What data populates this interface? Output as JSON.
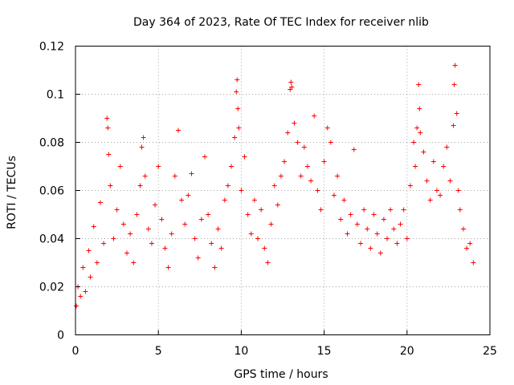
{
  "chart_data": {
    "type": "scatter",
    "title": "Day 364 of 2023, Rate Of TEC Index for receiver nlib",
    "xlabel": "GPS time / hours",
    "ylabel": "ROTI / TECUs",
    "xlim": [
      0,
      25
    ],
    "ylim": [
      0,
      0.12
    ],
    "xticks": [
      "0",
      "5",
      "10",
      "15",
      "20",
      "25"
    ],
    "yticks": [
      "0",
      "0.02",
      "0.04",
      "0.06",
      "0.08",
      "0.1",
      "0.12"
    ],
    "grid": true,
    "marker": "+",
    "color": "#ff0000",
    "series": [
      {
        "points": [
          [
            0.05,
            0.012
          ],
          [
            0.15,
            0.02
          ],
          [
            0.3,
            0.016
          ],
          [
            0.45,
            0.028
          ],
          [
            0.6,
            0.018
          ],
          [
            0.8,
            0.035
          ],
          [
            0.9,
            0.024
          ],
          [
            1.1,
            0.045
          ],
          [
            1.3,
            0.03
          ],
          [
            1.5,
            0.055
          ],
          [
            1.7,
            0.038
          ],
          [
            1.9,
            0.09
          ],
          [
            1.95,
            0.086
          ],
          [
            2.0,
            0.075
          ],
          [
            2.1,
            0.062
          ],
          [
            2.3,
            0.04
          ],
          [
            2.5,
            0.052
          ],
          [
            2.7,
            0.07
          ],
          [
            2.9,
            0.046
          ],
          [
            3.1,
            0.034
          ],
          [
            3.3,
            0.042
          ],
          [
            3.5,
            0.03
          ],
          [
            3.7,
            0.05
          ],
          [
            3.9,
            0.062
          ],
          [
            4.0,
            0.078
          ],
          [
            4.1,
            0.082
          ],
          [
            4.2,
            0.066
          ],
          [
            4.4,
            0.044
          ],
          [
            4.6,
            0.038
          ],
          [
            4.8,
            0.054
          ],
          [
            5.0,
            0.07
          ],
          [
            5.2,
            0.048
          ],
          [
            5.4,
            0.036
          ],
          [
            5.6,
            0.028
          ],
          [
            5.8,
            0.042
          ],
          [
            6.0,
            0.066
          ],
          [
            6.2,
            0.085
          ],
          [
            6.4,
            0.056
          ],
          [
            6.6,
            0.046
          ],
          [
            6.8,
            0.058
          ],
          [
            7.0,
            0.067
          ],
          [
            7.2,
            0.04
          ],
          [
            7.4,
            0.032
          ],
          [
            7.6,
            0.048
          ],
          [
            7.8,
            0.074
          ],
          [
            8.0,
            0.05
          ],
          [
            8.2,
            0.038
          ],
          [
            8.4,
            0.028
          ],
          [
            8.6,
            0.044
          ],
          [
            8.8,
            0.036
          ],
          [
            9.0,
            0.056
          ],
          [
            9.2,
            0.062
          ],
          [
            9.4,
            0.07
          ],
          [
            9.6,
            0.082
          ],
          [
            9.7,
            0.101
          ],
          [
            9.75,
            0.106
          ],
          [
            9.8,
            0.094
          ],
          [
            9.85,
            0.086
          ],
          [
            10.0,
            0.06
          ],
          [
            10.2,
            0.074
          ],
          [
            10.4,
            0.05
          ],
          [
            10.6,
            0.042
          ],
          [
            10.8,
            0.056
          ],
          [
            11.0,
            0.04
          ],
          [
            11.2,
            0.052
          ],
          [
            11.4,
            0.036
          ],
          [
            11.6,
            0.03
          ],
          [
            11.8,
            0.046
          ],
          [
            12.0,
            0.062
          ],
          [
            12.2,
            0.054
          ],
          [
            12.4,
            0.066
          ],
          [
            12.6,
            0.072
          ],
          [
            12.8,
            0.084
          ],
          [
            12.95,
            0.102
          ],
          [
            13.0,
            0.105
          ],
          [
            13.05,
            0.103
          ],
          [
            13.2,
            0.088
          ],
          [
            13.4,
            0.08
          ],
          [
            13.6,
            0.066
          ],
          [
            13.8,
            0.078
          ],
          [
            14.0,
            0.07
          ],
          [
            14.2,
            0.064
          ],
          [
            14.4,
            0.091
          ],
          [
            14.6,
            0.06
          ],
          [
            14.8,
            0.052
          ],
          [
            15.0,
            0.072
          ],
          [
            15.2,
            0.086
          ],
          [
            15.4,
            0.08
          ],
          [
            15.6,
            0.058
          ],
          [
            15.8,
            0.066
          ],
          [
            16.0,
            0.048
          ],
          [
            16.2,
            0.056
          ],
          [
            16.4,
            0.042
          ],
          [
            16.6,
            0.05
          ],
          [
            16.8,
            0.077
          ],
          [
            17.0,
            0.046
          ],
          [
            17.2,
            0.038
          ],
          [
            17.4,
            0.052
          ],
          [
            17.6,
            0.044
          ],
          [
            17.8,
            0.036
          ],
          [
            18.0,
            0.05
          ],
          [
            18.2,
            0.042
          ],
          [
            18.4,
            0.034
          ],
          [
            18.6,
            0.048
          ],
          [
            18.8,
            0.04
          ],
          [
            19.0,
            0.052
          ],
          [
            19.2,
            0.044
          ],
          [
            19.4,
            0.038
          ],
          [
            19.6,
            0.046
          ],
          [
            19.8,
            0.052
          ],
          [
            20.0,
            0.04
          ],
          [
            20.2,
            0.062
          ],
          [
            20.4,
            0.08
          ],
          [
            20.5,
            0.07
          ],
          [
            20.6,
            0.086
          ],
          [
            20.7,
            0.104
          ],
          [
            20.75,
            0.094
          ],
          [
            20.8,
            0.084
          ],
          [
            21.0,
            0.076
          ],
          [
            21.2,
            0.064
          ],
          [
            21.4,
            0.056
          ],
          [
            21.6,
            0.072
          ],
          [
            21.8,
            0.06
          ],
          [
            22.0,
            0.058
          ],
          [
            22.2,
            0.07
          ],
          [
            22.4,
            0.078
          ],
          [
            22.6,
            0.064
          ],
          [
            22.8,
            0.087
          ],
          [
            22.85,
            0.104
          ],
          [
            22.9,
            0.112
          ],
          [
            23.0,
            0.092
          ],
          [
            23.1,
            0.06
          ],
          [
            23.2,
            0.052
          ],
          [
            23.4,
            0.044
          ],
          [
            23.6,
            0.036
          ],
          [
            23.8,
            0.038
          ],
          [
            24.0,
            0.03
          ]
        ]
      }
    ]
  }
}
